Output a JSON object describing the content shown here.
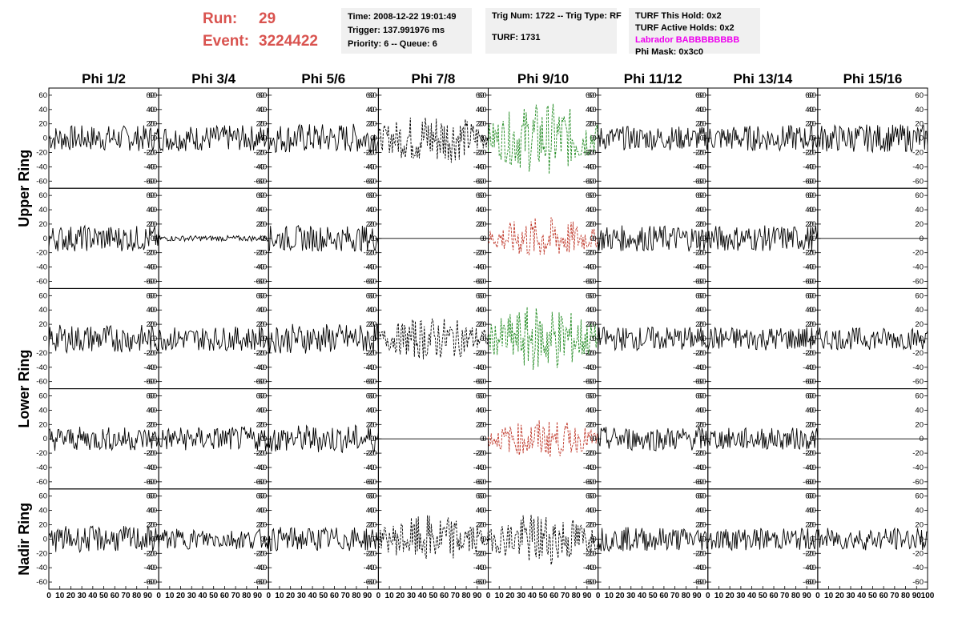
{
  "header": {
    "run_label": "Run:",
    "run_value": "29",
    "event_label": "Event:",
    "event_value": "3224422",
    "time": "Time: 2008-12-22 19:01:49",
    "trigger": "Trigger: 137.991976 ms",
    "priority": "Priority: 6 -- Queue: 6",
    "trig_num": "Trig Num: 1722 -- Trig Type: RF",
    "turf": "TURF: 1731",
    "turf_this_hold": "TURF This Hold: 0x2",
    "turf_active_holds": "TURF Active Holds: 0x2",
    "labrador": "Labrador BABBBBBBBB",
    "phi_mask": "Phi Mask: 0x3c0",
    "colors": {
      "run": "#d9534f",
      "labrador": "#ee00ee",
      "box_bg": "#f0f0f0"
    }
  },
  "chart_data": {
    "type": "line",
    "columns": [
      "Phi 1/2",
      "Phi 3/4",
      "Phi 5/6",
      "Phi 7/8",
      "Phi 9/10",
      "Phi 11/12",
      "Phi 13/14",
      "Phi 15/16"
    ],
    "row_groups": [
      {
        "label": "Upper Ring",
        "rows": [
          0,
          1
        ]
      },
      {
        "label": "Lower Ring",
        "rows": [
          2,
          3
        ]
      },
      {
        "label": "Nadir Ring",
        "rows": [
          4
        ]
      }
    ],
    "xlim": [
      0,
      100
    ],
    "ylim": [
      -70,
      70
    ],
    "yticks": [
      -60,
      -40,
      -20,
      0,
      20,
      40,
      60
    ],
    "xtick_labels": [
      "0",
      "10",
      "20",
      "30",
      "40",
      "50",
      "60",
      "70",
      "80",
      "90",
      "100"
    ],
    "series_colors": {
      "normal": "#000000",
      "triggered": "#228b22",
      "hold": "#c0392b"
    },
    "panels": [
      [
        {
          "style": "normal",
          "amp": 14
        },
        {
          "style": "normal",
          "amp": 14
        },
        {
          "style": "normal",
          "amp": 16
        },
        {
          "style": "dotted",
          "amp": 22
        },
        {
          "style": "triggered",
          "amp": 30
        },
        {
          "style": "normal",
          "amp": 13
        },
        {
          "style": "normal",
          "amp": 14
        },
        {
          "style": "normal",
          "amp": 15
        }
      ],
      [
        {
          "style": "normal",
          "amp": 14
        },
        {
          "style": "normal",
          "amp": 3
        },
        {
          "style": "normal",
          "amp": 14
        },
        {
          "style": "flat",
          "amp": 0
        },
        {
          "style": "hold",
          "amp": 18
        },
        {
          "style": "normal",
          "amp": 14
        },
        {
          "style": "normal",
          "amp": 14
        },
        {
          "style": "flat",
          "amp": 0
        }
      ],
      [
        {
          "style": "normal",
          "amp": 15
        },
        {
          "style": "normal",
          "amp": 13
        },
        {
          "style": "normal",
          "amp": 16
        },
        {
          "style": "dotted",
          "amp": 18
        },
        {
          "style": "triggered",
          "amp": 28
        },
        {
          "style": "normal",
          "amp": 13
        },
        {
          "style": "normal",
          "amp": 13
        },
        {
          "style": "normal",
          "amp": 12
        }
      ],
      [
        {
          "style": "normal",
          "amp": 13
        },
        {
          "style": "normal",
          "amp": 13
        },
        {
          "style": "normal",
          "amp": 15
        },
        {
          "style": "flat",
          "amp": 0
        },
        {
          "style": "hold",
          "amp": 16
        },
        {
          "style": "normal",
          "amp": 13
        },
        {
          "style": "normal",
          "amp": 12
        },
        {
          "style": "flat",
          "amp": 0
        }
      ],
      [
        {
          "style": "normal",
          "amp": 14
        },
        {
          "style": "normal",
          "amp": 11
        },
        {
          "style": "normal",
          "amp": 13
        },
        {
          "style": "dotted",
          "amp": 20
        },
        {
          "style": "dotted",
          "amp": 22
        },
        {
          "style": "normal",
          "amp": 13
        },
        {
          "style": "normal",
          "amp": 12
        },
        {
          "style": "normal",
          "amp": 12
        }
      ]
    ]
  }
}
